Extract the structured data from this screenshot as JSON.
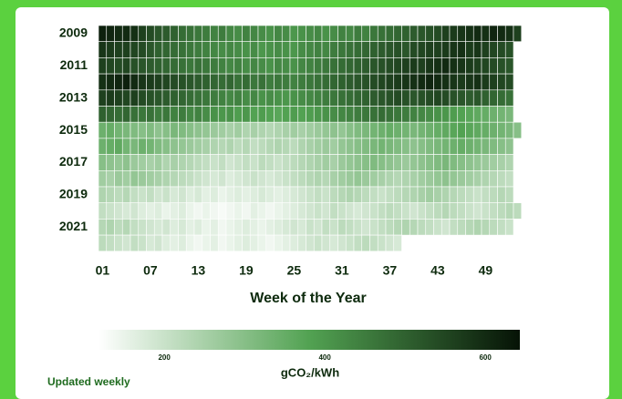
{
  "chart_data": {
    "type": "heatmap",
    "xlabel": "Week of the Year",
    "xlim": [
      1,
      53
    ],
    "xticks": [
      {
        "value": 1,
        "label": "01"
      },
      {
        "value": 7,
        "label": "07"
      },
      13,
      19,
      25,
      31,
      37,
      43,
      49
    ],
    "y_categories": [
      "2009",
      null,
      "2011",
      null,
      "2013",
      null,
      "2015",
      null,
      "2017",
      null,
      "2019",
      null,
      "2021",
      null
    ],
    "values": [
      [
        620,
        610,
        600,
        600,
        590,
        560,
        540,
        520,
        510,
        500,
        480,
        470,
        460,
        450,
        440,
        450,
        430,
        420,
        440,
        430,
        420,
        410,
        430,
        420,
        400,
        410,
        420,
        430,
        410,
        420,
        440,
        430,
        450,
        440,
        460,
        470,
        480,
        490,
        500,
        510,
        520,
        530,
        540,
        560,
        570,
        580,
        590,
        600,
        590,
        610,
        600,
        590,
        560
      ],
      [
        580,
        570,
        560,
        560,
        550,
        540,
        520,
        500,
        490,
        480,
        470,
        460,
        450,
        440,
        430,
        420,
        430,
        420,
        410,
        420,
        400,
        410,
        420,
        410,
        400,
        420,
        430,
        440,
        430,
        450,
        460,
        470,
        480,
        490,
        500,
        510,
        520,
        530,
        520,
        540,
        550,
        560,
        560,
        570,
        580,
        590,
        570,
        580,
        560,
        550,
        540,
        530
      ],
      [
        560,
        550,
        540,
        550,
        530,
        520,
        510,
        500,
        490,
        480,
        470,
        460,
        470,
        460,
        450,
        440,
        430,
        440,
        420,
        430,
        420,
        410,
        430,
        420,
        410,
        430,
        440,
        450,
        460,
        470,
        480,
        490,
        500,
        510,
        520,
        530,
        540,
        550,
        560,
        570,
        560,
        580,
        590,
        600,
        590,
        580,
        570,
        560,
        550,
        540,
        530,
        520
      ],
      [
        590,
        600,
        610,
        620,
        600,
        580,
        570,
        560,
        550,
        540,
        530,
        520,
        510,
        500,
        490,
        480,
        490,
        470,
        480,
        460,
        470,
        450,
        460,
        450,
        440,
        450,
        460,
        470,
        480,
        490,
        500,
        510,
        520,
        530,
        540,
        550,
        560,
        570,
        580,
        590,
        600,
        610,
        600,
        590,
        580,
        570,
        580,
        590,
        570,
        560,
        550,
        540
      ],
      [
        560,
        570,
        560,
        550,
        560,
        540,
        530,
        520,
        510,
        500,
        490,
        480,
        470,
        460,
        450,
        440,
        430,
        440,
        420,
        430,
        410,
        420,
        410,
        400,
        410,
        420,
        430,
        440,
        450,
        460,
        470,
        480,
        490,
        500,
        510,
        520,
        530,
        540,
        530,
        520,
        530,
        540,
        550,
        540,
        530,
        520,
        510,
        520,
        500,
        490,
        480,
        470
      ],
      [
        500,
        490,
        480,
        490,
        470,
        460,
        470,
        450,
        460,
        440,
        450,
        430,
        440,
        420,
        410,
        400,
        410,
        390,
        400,
        380,
        390,
        380,
        370,
        380,
        390,
        380,
        390,
        400,
        410,
        420,
        430,
        440,
        450,
        460,
        470,
        480,
        470,
        460,
        450,
        440,
        430,
        420,
        410,
        400,
        390,
        380,
        370,
        360,
        350,
        340,
        330,
        320
      ],
      [
        340,
        350,
        330,
        320,
        310,
        300,
        310,
        290,
        300,
        320,
        310,
        300,
        290,
        280,
        270,
        260,
        250,
        260,
        240,
        250,
        240,
        230,
        240,
        250,
        260,
        250,
        260,
        270,
        280,
        290,
        280,
        300,
        310,
        320,
        330,
        340,
        350,
        340,
        330,
        320,
        330,
        340,
        350,
        360,
        370,
        380,
        370,
        360,
        350,
        340,
        330,
        320,
        300
      ],
      [
        340,
        350,
        360,
        330,
        320,
        340,
        330,
        310,
        300,
        290,
        280,
        270,
        260,
        250,
        240,
        230,
        240,
        220,
        230,
        210,
        220,
        230,
        240,
        230,
        220,
        240,
        250,
        260,
        270,
        260,
        280,
        290,
        300,
        310,
        320,
        330,
        320,
        310,
        300,
        290,
        300,
        310,
        320,
        330,
        340,
        350,
        340,
        330,
        320,
        310,
        300,
        290
      ],
      [
        300,
        290,
        280,
        290,
        270,
        260,
        250,
        260,
        240,
        250,
        240,
        230,
        220,
        210,
        200,
        210,
        190,
        200,
        210,
        200,
        220,
        210,
        200,
        210,
        220,
        230,
        240,
        250,
        260,
        250,
        270,
        280,
        290,
        300,
        310,
        300,
        290,
        280,
        270,
        280,
        290,
        300,
        310,
        320,
        310,
        300,
        290,
        280,
        270,
        260,
        250,
        240
      ],
      [
        260,
        250,
        270,
        260,
        280,
        270,
        260,
        250,
        240,
        230,
        220,
        210,
        200,
        190,
        180,
        190,
        170,
        180,
        190,
        200,
        190,
        180,
        190,
        200,
        210,
        220,
        230,
        240,
        230,
        250,
        260,
        270,
        280,
        270,
        260,
        250,
        240,
        230,
        240,
        250,
        260,
        270,
        280,
        290,
        280,
        270,
        260,
        250,
        240,
        230,
        220,
        210
      ],
      [
        240,
        230,
        220,
        230,
        210,
        200,
        210,
        190,
        200,
        180,
        190,
        170,
        180,
        160,
        170,
        150,
        160,
        170,
        160,
        170,
        180,
        170,
        160,
        170,
        180,
        190,
        200,
        210,
        200,
        220,
        230,
        240,
        230,
        220,
        210,
        200,
        210,
        220,
        230,
        240,
        250,
        260,
        250,
        240,
        230,
        220,
        210,
        200,
        210,
        220,
        230,
        220
      ],
      [
        210,
        200,
        190,
        180,
        190,
        170,
        160,
        170,
        150,
        160,
        170,
        150,
        140,
        150,
        140,
        130,
        140,
        150,
        140,
        160,
        150,
        140,
        150,
        160,
        170,
        180,
        190,
        200,
        190,
        210,
        200,
        190,
        180,
        190,
        200,
        210,
        220,
        210,
        200,
        190,
        200,
        210,
        220,
        230,
        220,
        210,
        200,
        190,
        200,
        210,
        220,
        230,
        220
      ],
      [
        230,
        240,
        220,
        230,
        210,
        200,
        190,
        180,
        190,
        170,
        180,
        160,
        170,
        150,
        160,
        140,
        150,
        160,
        170,
        160,
        150,
        160,
        170,
        180,
        190,
        180,
        200,
        190,
        210,
        200,
        220,
        210,
        200,
        190,
        200,
        210,
        220,
        230,
        240,
        230,
        220,
        210,
        200,
        190,
        210,
        220,
        230,
        240,
        230,
        220,
        210,
        200
      ],
      [
        220,
        210,
        200,
        190,
        210,
        200,
        180,
        190,
        170,
        160,
        170,
        150,
        140,
        150,
        160,
        140,
        150,
        160,
        170,
        160,
        150,
        140,
        150,
        160,
        170,
        180,
        190,
        200,
        190,
        180,
        190,
        200,
        210,
        220,
        210,
        200,
        190,
        180
      ]
    ],
    "colors": [
      "#ffffff",
      "#52a252",
      "#061306"
    ],
    "zlim": [
      118,
      643
    ],
    "zticks": [
      200,
      400,
      600
    ],
    "zlabel": "gCO₂/kWh",
    "note": "Updated weekly"
  }
}
